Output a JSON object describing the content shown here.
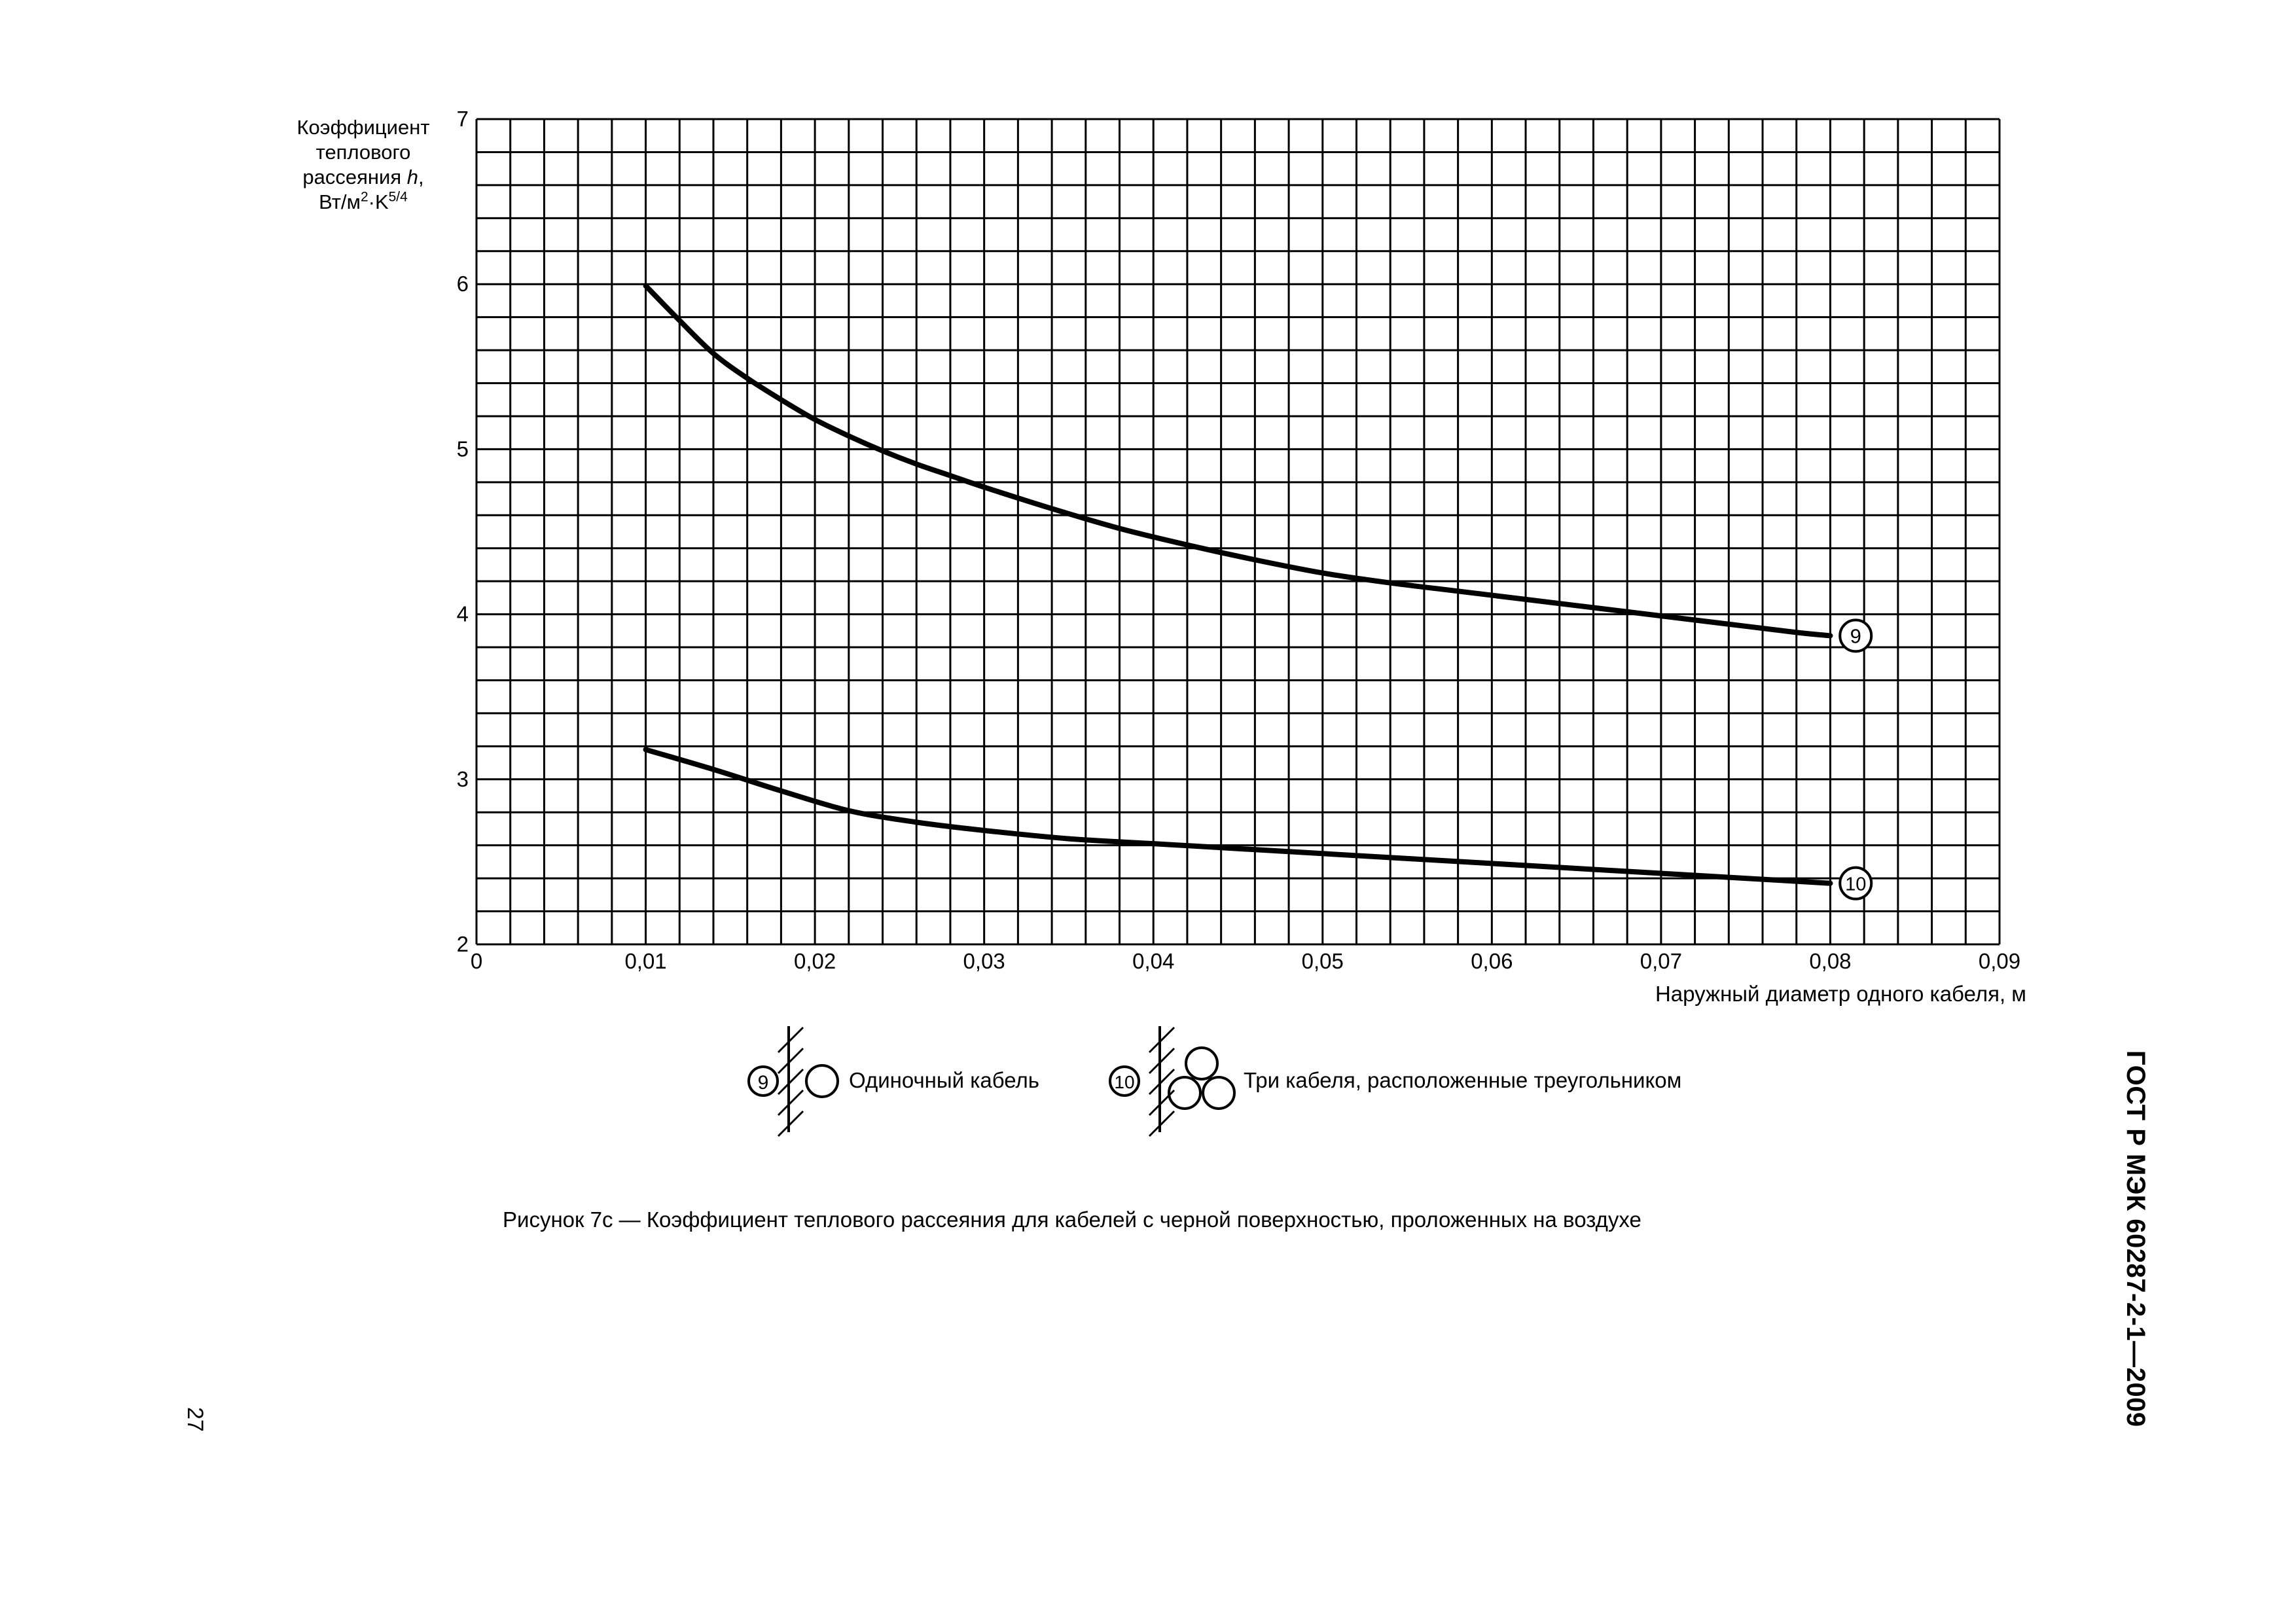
{
  "chart_data": {
    "type": "line",
    "ylabel": {
      "line1": "Коэффициент",
      "line2": "теплового",
      "line3_text": "рассеяния ",
      "line3_italic": "h",
      "line3_tail": ",",
      "line4_a": "Вт/м",
      "line4_sup1": "2",
      "line4_b": "·K",
      "line4_sup2": "5/4"
    },
    "xlabel": "Наружный диаметр одного кабеля, м",
    "xlim": [
      0,
      0.09
    ],
    "ylim": [
      2,
      7
    ],
    "x_ticks": [
      "0",
      "0,01",
      "0,02",
      "0,03",
      "0,04",
      "0,05",
      "0,06",
      "0,07",
      "0,08",
      "0,09"
    ],
    "y_ticks": [
      "2",
      "3",
      "4",
      "5",
      "6",
      "7"
    ],
    "grid": true,
    "grid_minor_x_step": 0.002,
    "grid_minor_y_step": 0.2,
    "series": [
      {
        "name": "9",
        "x": [
          0.01,
          0.012,
          0.014,
          0.016,
          0.018,
          0.02,
          0.022,
          0.024,
          0.026,
          0.028,
          0.03,
          0.034,
          0.038,
          0.042,
          0.046,
          0.05,
          0.054,
          0.058,
          0.062,
          0.066,
          0.07,
          0.074,
          0.078,
          0.08
        ],
        "y": [
          5.99,
          5.78,
          5.58,
          5.43,
          5.3,
          5.18,
          5.08,
          4.99,
          4.91,
          4.84,
          4.77,
          4.64,
          4.52,
          4.42,
          4.33,
          4.25,
          4.19,
          4.14,
          4.09,
          4.04,
          3.99,
          3.94,
          3.89,
          3.87
        ]
      },
      {
        "name": "10",
        "x": [
          0.01,
          0.014,
          0.018,
          0.022,
          0.026,
          0.03,
          0.035,
          0.04,
          0.045,
          0.05,
          0.055,
          0.06,
          0.065,
          0.07,
          0.075,
          0.08
        ],
        "y": [
          3.18,
          3.06,
          2.93,
          2.81,
          2.74,
          2.69,
          2.64,
          2.61,
          2.58,
          2.55,
          2.52,
          2.49,
          2.46,
          2.43,
          2.4,
          2.37
        ]
      }
    ],
    "series_markers": [
      {
        "label": "9",
        "x": 0.0815,
        "y": 3.87
      },
      {
        "label": "10",
        "x": 0.0815,
        "y": 2.37
      }
    ]
  },
  "legend": {
    "items": [
      {
        "marker": "9",
        "label": "Одиночный кабель"
      },
      {
        "marker": "10",
        "label": "Три кабеля, расположенные треугольником"
      }
    ]
  },
  "caption": "Рисунок 7с — Коэффициент теплового рассеяния для кабелей с черной поверхностью, проложенных на воздухе",
  "document_code": "ГОСТ Р МЭК 60287-2-1—2009",
  "page_number": "27"
}
